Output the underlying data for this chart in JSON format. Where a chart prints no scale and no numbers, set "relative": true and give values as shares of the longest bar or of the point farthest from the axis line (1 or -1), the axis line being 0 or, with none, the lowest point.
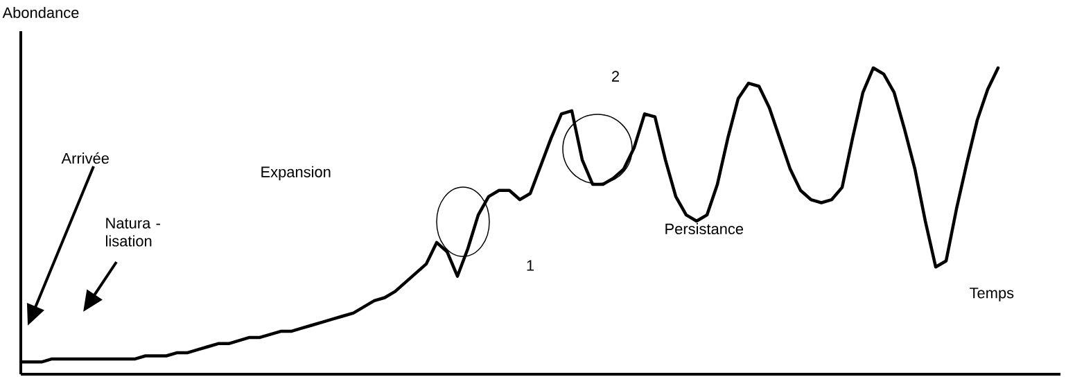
{
  "chart_data": {
    "type": "line",
    "relative": true,
    "color": "#000000",
    "marker": "none",
    "line_style": "solid",
    "xlabel": "Temps",
    "ylabel": "Abondance",
    "annotations": [
      "Arrivée",
      "Natura - lisation",
      "Expansion",
      "1",
      "2",
      "Persistance"
    ],
    "categories": [
      null,
      null,
      null,
      null,
      null,
      null,
      null,
      null,
      null,
      null,
      null,
      null,
      null,
      null,
      null,
      null,
      null,
      null,
      null,
      null,
      null,
      null,
      null,
      null,
      null,
      null,
      null,
      null,
      null,
      null,
      null,
      null,
      null,
      null,
      null,
      null,
      null,
      null,
      null,
      null,
      null,
      null,
      null,
      null,
      null,
      null,
      null,
      null,
      null,
      null,
      null,
      null,
      null,
      null,
      null,
      null,
      null,
      null,
      null,
      null,
      null,
      null,
      null,
      null,
      null,
      null,
      null,
      null,
      null,
      null,
      null,
      null,
      null,
      null,
      null,
      null,
      null,
      null,
      null,
      null,
      null,
      null,
      null,
      null,
      null,
      null,
      null,
      null,
      null,
      null,
      null,
      null,
      null,
      null,
      null
    ],
    "values": [
      0.04,
      0.04,
      0.04,
      0.05,
      0.05,
      0.05,
      0.05,
      0.05,
      0.05,
      0.05,
      0.05,
      0.05,
      0.06,
      0.06,
      0.06,
      0.07,
      0.07,
      0.08,
      0.09,
      0.1,
      0.1,
      0.11,
      0.12,
      0.12,
      0.13,
      0.14,
      0.14,
      0.15,
      0.16,
      0.17,
      0.18,
      0.19,
      0.2,
      0.22,
      0.24,
      0.25,
      0.27,
      0.3,
      0.33,
      0.36,
      0.43,
      0.4,
      0.32,
      0.41,
      0.52,
      0.58,
      0.6,
      0.6,
      0.57,
      0.59,
      0.68,
      0.77,
      0.85,
      0.86,
      0.7,
      0.62,
      0.62,
      0.64,
      0.67,
      0.74,
      0.85,
      0.84,
      0.7,
      0.58,
      0.52,
      0.5,
      0.52,
      0.62,
      0.77,
      0.9,
      0.95,
      0.94,
      0.87,
      0.77,
      0.67,
      0.6,
      0.57,
      0.56,
      0.57,
      0.61,
      0.77,
      0.92,
      1.0,
      0.98,
      0.92,
      0.8,
      0.67,
      0.5,
      0.35,
      0.37,
      0.54,
      0.69,
      0.83,
      0.93,
      1.0
    ]
  }
}
